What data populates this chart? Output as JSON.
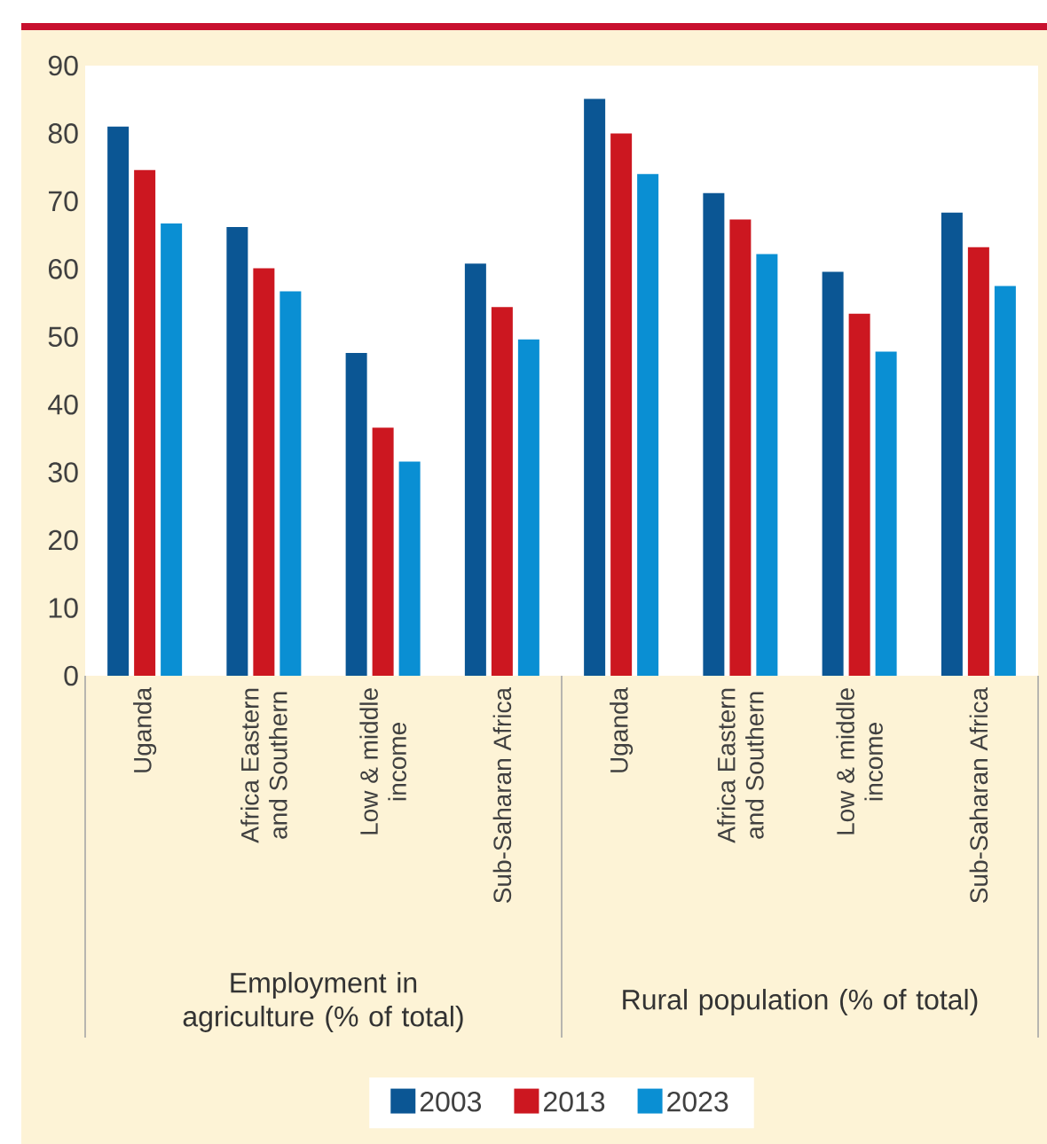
{
  "chart_data": {
    "type": "bar",
    "categories": [
      "Uganda",
      "Africa Eastern and Southern",
      "Low & middle income",
      "Sub-Saharan Africa",
      "Uganda",
      "Africa Eastern and Southern",
      "Low & middle income",
      "Sub-Saharan Africa"
    ],
    "series": [
      {
        "name": "2003",
        "color": "#0b5694",
        "values": [
          81,
          66.2,
          47.6,
          60.8,
          85.1,
          71.2,
          59.6,
          68.3
        ]
      },
      {
        "name": "2013",
        "color": "#cc1720",
        "values": [
          74.6,
          60.1,
          36.6,
          54.4,
          80,
          67.3,
          53.4,
          63.2
        ]
      },
      {
        "name": "2023",
        "color": "#0a8fd3",
        "values": [
          66.7,
          56.7,
          31.6,
          49.6,
          74,
          62.2,
          47.8,
          57.5
        ]
      }
    ],
    "annotations": [
      "Employment in agriculture (% of total)",
      "Rural population (% of total)"
    ],
    "ylim": [
      0,
      90
    ],
    "yticks": [
      0,
      10,
      20,
      30,
      40,
      50,
      60,
      70,
      80,
      90
    ],
    "grid": false,
    "legend": "bottom"
  }
}
